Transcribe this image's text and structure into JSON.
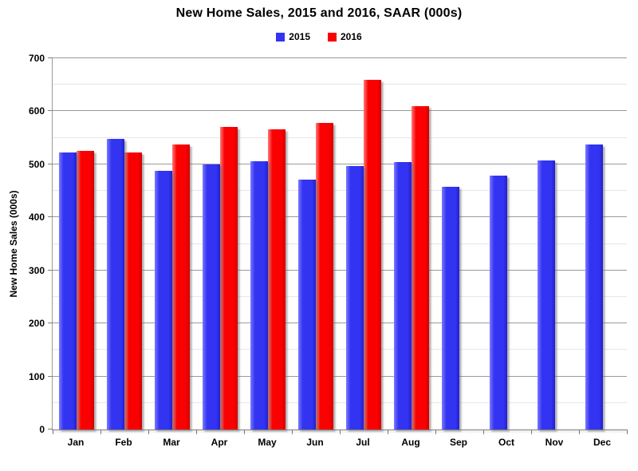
{
  "title": "New Home Sales,  2015 and 2016, SAAR (000s)",
  "y_axis": {
    "title": "New Home Sales (000s)",
    "tick_labels": [
      "0",
      "100",
      "200",
      "300",
      "400",
      "500",
      "600",
      "700"
    ]
  },
  "colors": {
    "series_2015": "#3333F2",
    "series_2016": "#FA0000",
    "grid_major": "#9A9A9A",
    "grid_minor": "#E7E7E7",
    "axis": "#7F7F7F"
  },
  "chart_data": {
    "type": "bar",
    "title": "New Home Sales,  2015 and 2016, SAAR (000s)",
    "categories": [
      "Jan",
      "Feb",
      "Mar",
      "Apr",
      "May",
      "Jun",
      "Jul",
      "Aug",
      "Sep",
      "Oct",
      "Nov",
      "Dec"
    ],
    "series": [
      {
        "name": "2015",
        "color": "#3333F2",
        "color_light": "#7A7AFF",
        "color_dark": "#2121CF",
        "values": [
          523,
          548,
          488,
          500,
          506,
          471,
          497,
          505,
          457,
          478,
          508,
          537
        ]
      },
      {
        "name": "2016",
        "color": "#FA0000",
        "color_light": "#FF7A7A",
        "color_dark": "#D40000",
        "values": [
          525,
          523,
          537,
          570,
          566,
          578,
          659,
          609,
          null,
          null,
          null,
          null
        ]
      }
    ],
    "xlabel": "",
    "ylabel": "New Home Sales (000s)",
    "ylim": [
      0,
      700
    ],
    "ytick_step": 100,
    "minor_gridline_step": 50,
    "grid": true,
    "legend_position": "top-center"
  }
}
